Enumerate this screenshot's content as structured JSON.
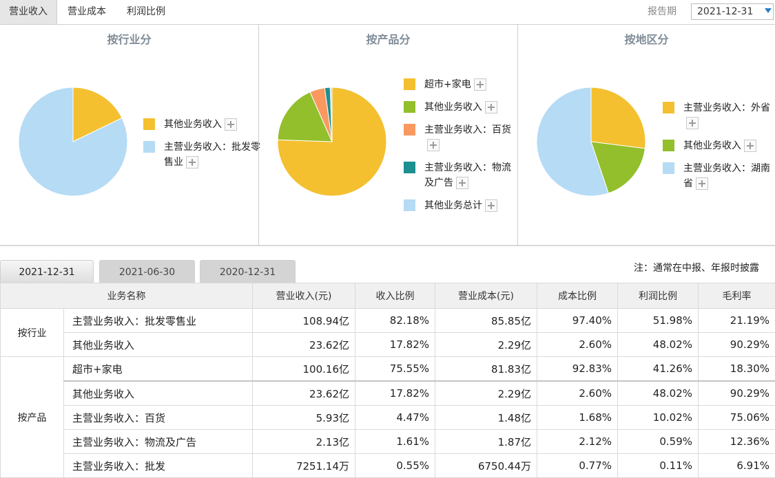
{
  "top_tabs": [
    "营业收入",
    "营业成本",
    "利润比例"
  ],
  "period_label": "报告期",
  "period_value": "2021-12-31",
  "panels": [
    {
      "title": "按行业分",
      "slices": [
        {
          "label": "其他业务收入",
          "value": 17.82,
          "color": "#f4c030"
        },
        {
          "label": "主营业务收入：批发零售业",
          "value": 82.18,
          "color": "#b5dbf5"
        }
      ],
      "legend": [
        {
          "text": "其他业务收入",
          "color": "#f4c030"
        },
        {
          "text": "主营业务收入：批发零售业",
          "color": "#b5dbf5"
        }
      ]
    },
    {
      "title": "按产品分",
      "slices": [
        {
          "label": "超市+家电",
          "value": 75.55,
          "color": "#f4c030"
        },
        {
          "label": "其他业务收入",
          "value": 17.82,
          "color": "#92bf2b"
        },
        {
          "label": "主营业务收入：百货",
          "value": 4.47,
          "color": "#f99960"
        },
        {
          "label": "主营业务收入：物流及广告",
          "value": 1.61,
          "color": "#1e8f8f"
        },
        {
          "label": "其他业务总计",
          "value": 0.55,
          "color": "#b5dbf5"
        }
      ],
      "legend": [
        {
          "text": "超市+家电",
          "color": "#f4c030"
        },
        {
          "text": "其他业务收入",
          "color": "#92bf2b"
        },
        {
          "text": "主营业务收入：百货",
          "color": "#f99960"
        },
        {
          "text": "主营业务收入：物流及广告",
          "color": "#1e8f8f"
        },
        {
          "text": "其他业务总计",
          "color": "#b5dbf5"
        }
      ]
    },
    {
      "title": "按地区分",
      "slices": [
        {
          "label": "主营业务收入：外省",
          "value": 27,
          "color": "#f4c030"
        },
        {
          "label": "其他业务收入",
          "value": 17.82,
          "color": "#92bf2b"
        },
        {
          "label": "主营业务收入：湖南省",
          "value": 55.18,
          "color": "#b5dbf5"
        }
      ],
      "legend": [
        {
          "text": "主营业务收入：外省",
          "color": "#f4c030"
        },
        {
          "text": "其他业务收入",
          "color": "#92bf2b"
        },
        {
          "text": "主营业务收入：湖南省",
          "color": "#b5dbf5"
        }
      ]
    }
  ],
  "date_tabs": [
    "2021-12-31",
    "2021-06-30",
    "2020-12-31"
  ],
  "note": "注：通常在中报、年报时披露",
  "table": {
    "headers": [
      "业务名称",
      "营业收入(元)",
      "收入比例",
      "营业成本(元)",
      "成本比例",
      "利润比例",
      "毛利率"
    ],
    "groups": [
      "按行业",
      "按产品"
    ],
    "rows": [
      [
        "主营业务收入：批发零售业",
        "108.94亿",
        "82.18%",
        "85.85亿",
        "97.40%",
        "51.98%",
        "21.19%"
      ],
      [
        "其他业务收入",
        "23.62亿",
        "17.82%",
        "2.29亿",
        "2.60%",
        "48.02%",
        "90.29%"
      ],
      [
        "超市+家电",
        "100.16亿",
        "75.55%",
        "81.83亿",
        "92.83%",
        "41.26%",
        "18.30%"
      ],
      [
        "其他业务收入",
        "23.62亿",
        "17.82%",
        "2.29亿",
        "2.60%",
        "48.02%",
        "90.29%"
      ],
      [
        "主营业务收入：百货",
        "5.93亿",
        "4.47%",
        "1.48亿",
        "1.68%",
        "10.02%",
        "75.06%"
      ],
      [
        "主营业务收入：物流及广告",
        "2.13亿",
        "1.61%",
        "1.87亿",
        "2.12%",
        "0.59%",
        "12.36%"
      ],
      [
        "主营业务收入：批发",
        "7251.14万",
        "0.55%",
        "6750.44万",
        "0.77%",
        "0.11%",
        "6.91%"
      ]
    ]
  }
}
